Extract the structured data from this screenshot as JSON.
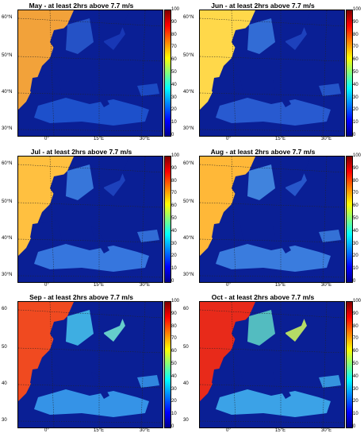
{
  "panels": [
    {
      "title": "May - at least 2hrs above 7.7 m/s",
      "lat_labels": [
        "60°N",
        "50°N",
        "40°N",
        "30°N"
      ],
      "lon_labels": [
        "0°",
        "15°E",
        "30°E"
      ],
      "sea_colors": {
        "atlantic": "#f2a23a",
        "north_sea": "#2a5ccf",
        "med": "#1f55d0",
        "baltic": "#1a3ab8"
      }
    },
    {
      "title": "Jun - at least 2hrs above 7.7 m/s",
      "lat_labels": [
        "60°N",
        "50°N",
        "40°N",
        "30°N"
      ],
      "lon_labels": [
        "0°",
        "15°E",
        "30°E"
      ],
      "sea_colors": {
        "atlantic": "#ffd84a",
        "north_sea": "#3a7ae0",
        "med": "#2b61d6",
        "baltic": "#1f45c0"
      }
    },
    {
      "title": "Jul - at least 2hrs above 7.7 m/s",
      "lat_labels": [
        "60°N",
        "50°N",
        "40°N",
        "30°N"
      ],
      "lon_labels": [
        "0°",
        "15°E",
        "30°E"
      ],
      "sea_colors": {
        "atlantic": "#ffc040",
        "north_sea": "#3f86e6",
        "med": "#3b7fe6",
        "baltic": "#1f45c0"
      }
    },
    {
      "title": "Aug - at least 2hrs above 7.7 m/s",
      "lat_labels": [
        "60°N",
        "50°N",
        "40°N",
        "30°N"
      ],
      "lon_labels": [
        "0°",
        "15°E",
        "30°E"
      ],
      "sea_colors": {
        "atlantic": "#ffb838",
        "north_sea": "#4a95ea",
        "med": "#3f86e6",
        "baltic": "#2a5ccf"
      }
    },
    {
      "title": "Sep - at least 2hrs above 7.7 m/s",
      "lat_labels": [
        "60",
        "50",
        "40",
        "30"
      ],
      "lon_labels": [
        "0°",
        "15°E",
        "30°E"
      ],
      "sea_colors": {
        "atlantic": "#f04a20",
        "north_sea": "#48c8f0",
        "med": "#3aa0f0",
        "baltic": "#6fe0d0"
      }
    },
    {
      "title": "Oct - at least 2hrs above 7.7 m/s",
      "lat_labels": [
        "60",
        "50",
        "40",
        "30"
      ],
      "lon_labels": [
        "0°",
        "15°E",
        "30°E"
      ],
      "sea_colors": {
        "atlantic": "#e82a1a",
        "north_sea": "#60d8c8",
        "med": "#40b0f0",
        "baltic": "#c8f060"
      }
    }
  ],
  "colorbar": {
    "ticks": [
      "100",
      "90",
      "80",
      "70",
      "60",
      "50",
      "40",
      "30",
      "20",
      "10",
      "0"
    ],
    "colormap": "jet"
  },
  "land_color": "#0a1f95"
}
